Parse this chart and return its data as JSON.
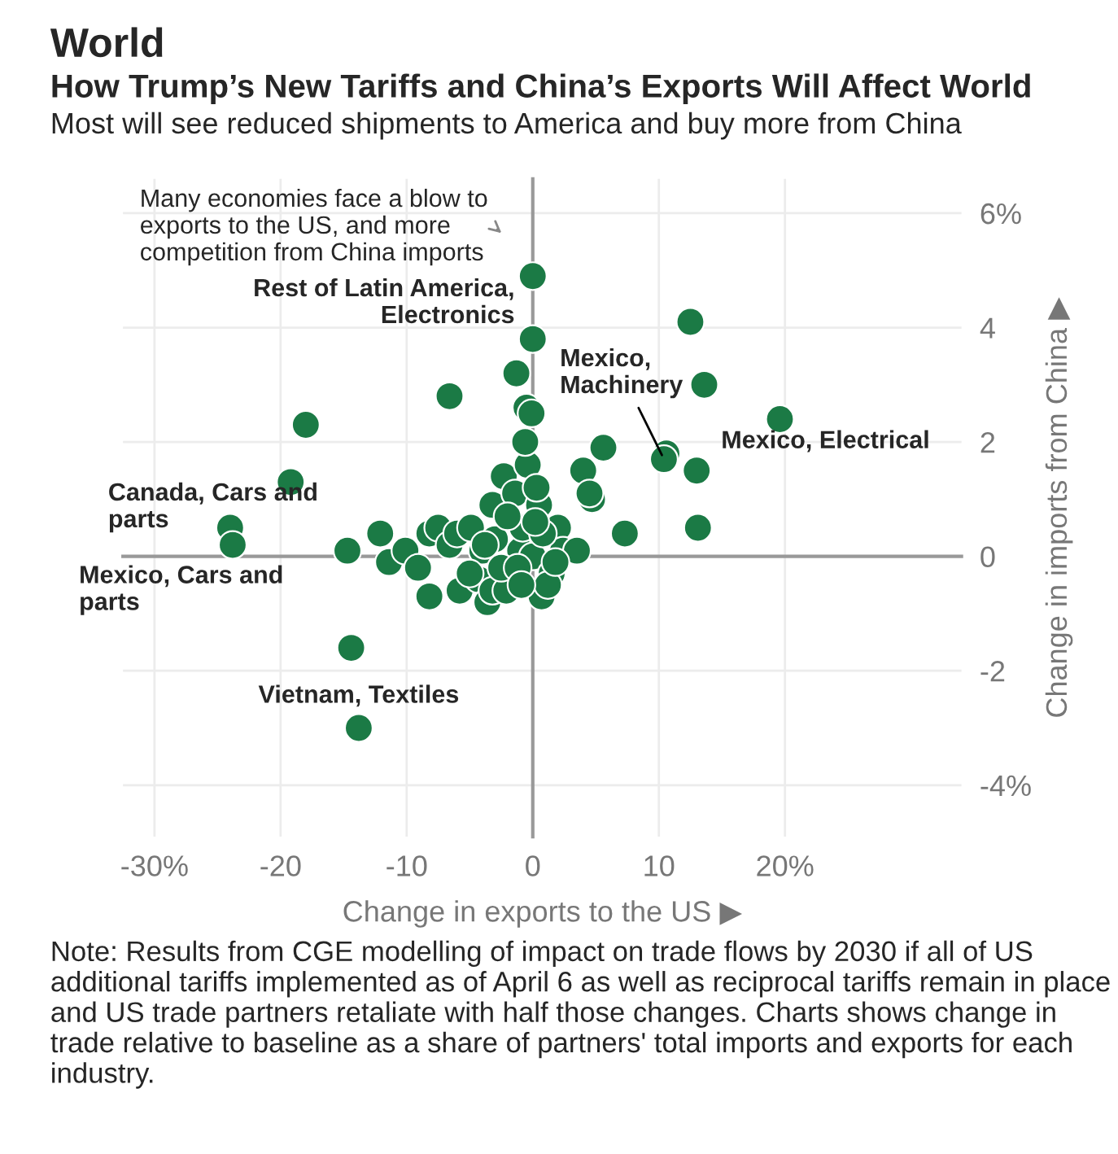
{
  "chart_data": {
    "type": "scatter",
    "title": "World",
    "subtitle": "How Trump’s New Tariffs and China’s Exports Will Affect World",
    "xlabel": "Change in exports to the US ▶",
    "ylabel": "Change in imports from China ▶",
    "annotations": [
      "Most will see reduced shipments to America and buy more from China",
      "Many economies face a blow to exports to the US, and more competition from China imports",
      {
        "text": "Rest of Latin America,\nElectronics",
        "x": 0,
        "y": 4.9
      },
      {
        "text": "Mexico,\nMachinery",
        "x": 10.4,
        "y": 1.7
      },
      {
        "text": "Mexico, Electrical",
        "x": 19.6,
        "y": 2.4
      },
      {
        "text": "Canada, Cars and\nparts",
        "x": -24,
        "y": 0.5
      },
      {
        "text": "Mexico, Cars and\nparts",
        "x": -23.8,
        "y": 0.2
      },
      {
        "text": "Vietnam, Textiles",
        "x": -13.8,
        "y": -3.0
      },
      "Note: Results from CGE modelling of impact on trade flows by 2030 if all of US additional tariffs implemented as of April 6 as well as reciprocal tariffs remain in place and US trade partners retaliate with half those changes. Charts shows change in trade relative to baseline as a share of partners' total imports and exports for each industry."
    ],
    "x": [
      0,
      0,
      -1.3,
      -6.6,
      -18,
      -19.2,
      -24,
      -23.8,
      -14.7,
      -14.4,
      -13.8,
      12.5,
      13.6,
      19.6,
      10.6,
      10.4,
      5.6,
      4.0,
      13.0,
      4.7,
      7.3,
      13.1,
      -0.5,
      -0.1,
      -12.1,
      -11.4,
      -10.1,
      -9.1,
      -8.2,
      -8.2,
      -7.5,
      -6.6,
      -6.0,
      -5.8,
      -4.9,
      -4.3,
      -4.0,
      -3.6,
      -3.2,
      -3.2,
      -2.3,
      -2.1,
      -1.4,
      -1.0,
      -0.8,
      -0.4,
      0,
      0.5,
      0.7,
      1.5,
      2.0,
      2.4,
      3.5,
      4.5,
      0.8,
      -2.5,
      1.2,
      -5,
      -3,
      0.3,
      -0.6,
      -1.2,
      0.2,
      -2,
      1.8,
      -3.8,
      -0.9
    ],
    "values": [
      4.9,
      3.8,
      3.2,
      2.8,
      2.3,
      1.3,
      0.5,
      0.2,
      0.1,
      -1.6,
      -3.0,
      4.1,
      3.0,
      2.4,
      1.8,
      1.7,
      1.9,
      1.5,
      1.5,
      1.0,
      0.4,
      0.5,
      2.6,
      2.5,
      0.4,
      -0.1,
      0.1,
      -0.2,
      0.4,
      -0.7,
      0.5,
      0.2,
      0.4,
      -0.6,
      0.5,
      -0.4,
      0.1,
      -0.8,
      -0.6,
      0.9,
      1.4,
      -0.6,
      1.1,
      0.1,
      0.5,
      1.6,
      0,
      0.9,
      -0.7,
      -0.3,
      0.5,
      0.1,
      0.1,
      1.1,
      0.4,
      -0.2,
      -0.5,
      -0.3,
      0.3,
      1.2,
      2.0,
      -0.2,
      0.6,
      0.7,
      -0.1,
      0.2,
      -0.5
    ],
    "color": "#1b7a45",
    "marker": "circle",
    "xlim": [
      -32.5,
      34
    ],
    "ylim": [
      -4.9,
      6.6
    ],
    "xticks": [
      {
        "value": -30,
        "label": "-30%"
      },
      -20,
      -10,
      0,
      10,
      {
        "value": 20,
        "label": "20%"
      }
    ],
    "yticks": [
      {
        "value": -4,
        "label": "-4%"
      },
      -2,
      0,
      2,
      4,
      {
        "value": 6,
        "label": "6%"
      }
    ],
    "grid": true
  }
}
